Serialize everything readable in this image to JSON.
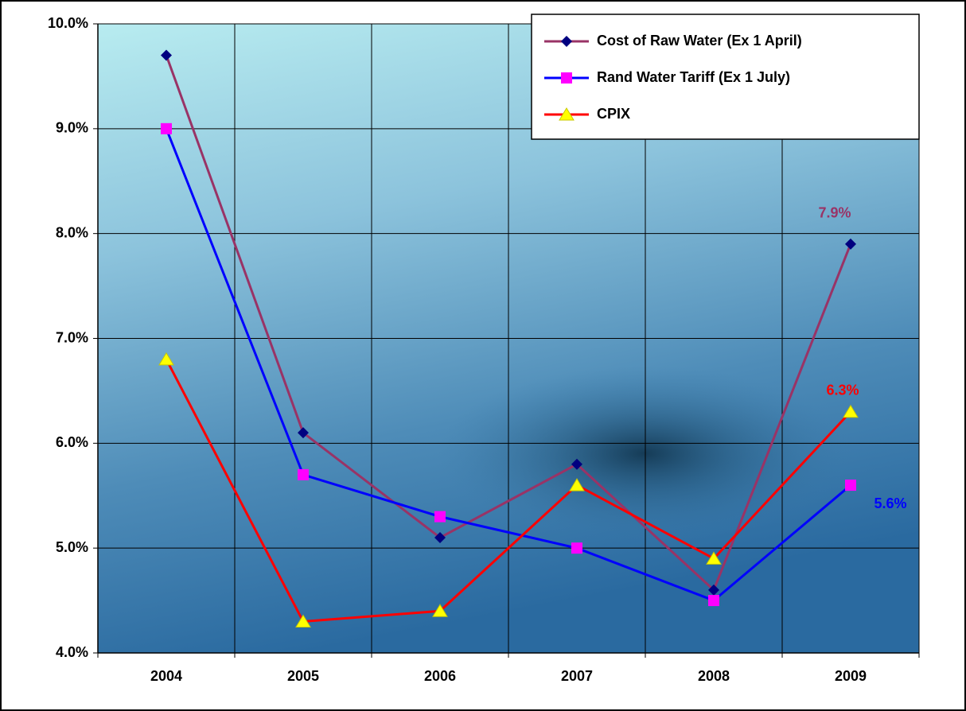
{
  "chart_data": {
    "type": "line",
    "categories": [
      "2004",
      "2005",
      "2006",
      "2007",
      "2008",
      "2009"
    ],
    "series": [
      {
        "name": "Cost of Raw Water (Ex 1 April)",
        "color": "#993366",
        "marker": "diamond",
        "marker_color": "#000080",
        "values": [
          9.7,
          6.1,
          5.1,
          5.8,
          4.6,
          7.9
        ],
        "value_labels": [
          null,
          null,
          null,
          null,
          null,
          "7.9%"
        ]
      },
      {
        "name": "Rand Water Tariff (Ex 1 July)",
        "color": "#0000ff",
        "marker": "square",
        "marker_color": "#ff00ff",
        "values": [
          9.0,
          5.7,
          5.3,
          5.0,
          4.5,
          5.6
        ],
        "value_labels": [
          null,
          null,
          null,
          null,
          null,
          "5.6%"
        ]
      },
      {
        "name": "CPIX",
        "color": "#ff0000",
        "marker": "triangle",
        "marker_color": "#ffff00",
        "values": [
          6.8,
          4.3,
          4.4,
          5.6,
          4.9,
          6.3
        ],
        "value_labels": [
          null,
          null,
          null,
          null,
          null,
          "6.3%"
        ]
      }
    ],
    "ylim": [
      4,
      10
    ],
    "yticks": [
      {
        "value": 4,
        "label": "4.0%"
      },
      {
        "value": 5,
        "label": "5.0%"
      },
      {
        "value": 6,
        "label": "6.0%"
      },
      {
        "value": 7,
        "label": "7.0%"
      },
      {
        "value": 8,
        "label": "8.0%"
      },
      {
        "value": 9,
        "label": "9.0%"
      },
      {
        "value": 10,
        "label": "10.0%"
      }
    ],
    "grid": true,
    "legend": "upper right"
  }
}
